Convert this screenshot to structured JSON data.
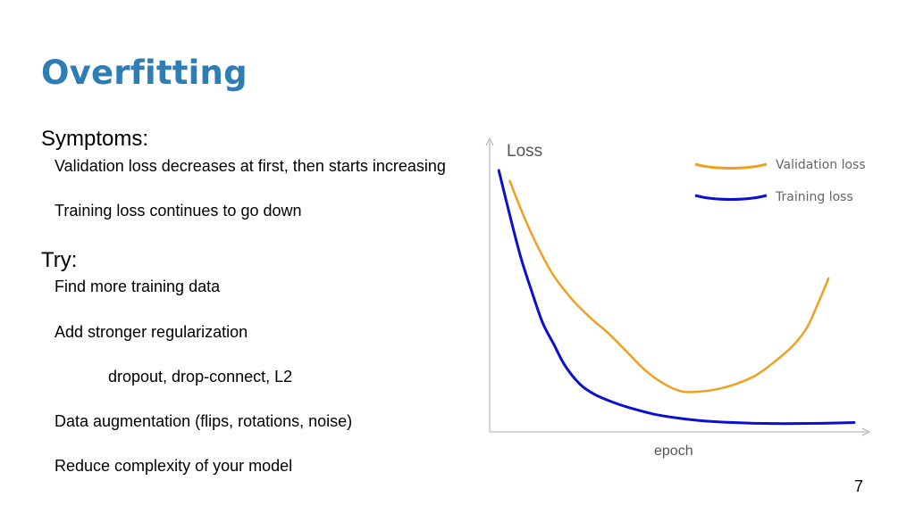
{
  "slide": {
    "title": "Overfitting",
    "symptoms": {
      "heading": "Symptoms:",
      "items": [
        "Validation loss decreases at first, then starts increasing",
        "Training loss continues to go down"
      ]
    },
    "try": {
      "heading": "Try:",
      "items": [
        "Find more training data",
        "Add stronger regularization",
        "dropout, drop-connect, L2",
        "Data augmentation (flips, rotations, noise)",
        "Reduce complexity of your model"
      ]
    },
    "page_number": "7"
  },
  "chart_data": {
    "type": "line",
    "ylabel": "Loss",
    "xlabel": "epoch",
    "legend_position": "top-right",
    "grid": false,
    "xlim": [
      0,
      1
    ],
    "ylim": [
      0,
      1
    ],
    "series": [
      {
        "name": "Validation loss",
        "color": "#f0a020",
        "x": [
          0.05,
          0.09,
          0.13,
          0.17,
          0.22,
          0.27,
          0.32,
          0.37,
          0.42,
          0.47,
          0.52,
          0.57,
          0.62,
          0.67,
          0.72,
          0.77,
          0.82,
          0.86,
          0.89,
          0.92
        ],
        "y": [
          0.94,
          0.8,
          0.68,
          0.58,
          0.49,
          0.42,
          0.36,
          0.29,
          0.22,
          0.17,
          0.14,
          0.14,
          0.15,
          0.17,
          0.2,
          0.25,
          0.31,
          0.38,
          0.47,
          0.57
        ]
      },
      {
        "name": "Training loss",
        "color": "#0a10d0",
        "x": [
          0.02,
          0.05,
          0.08,
          0.11,
          0.14,
          0.17,
          0.2,
          0.24,
          0.28,
          0.33,
          0.38,
          0.45,
          0.52,
          0.6,
          0.7,
          0.8,
          0.9,
          0.99
        ],
        "y": [
          0.98,
          0.81,
          0.65,
          0.52,
          0.4,
          0.32,
          0.24,
          0.17,
          0.13,
          0.1,
          0.077,
          0.052,
          0.037,
          0.026,
          0.02,
          0.018,
          0.019,
          0.022
        ]
      }
    ]
  }
}
